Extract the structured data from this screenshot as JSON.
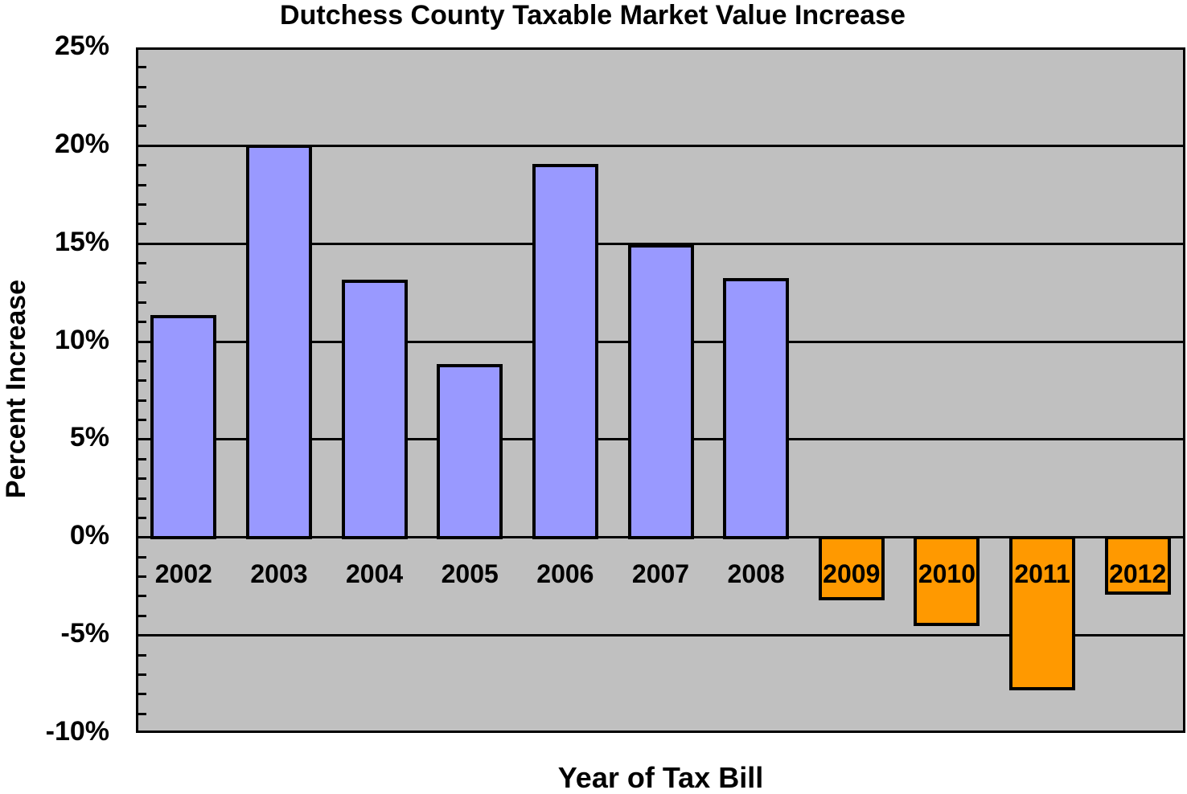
{
  "chart_data": {
    "type": "bar",
    "title": "Dutchess County Taxable Market Value Increase",
    "xlabel": "Year of Tax Bill",
    "ylabel": "Percent Increase",
    "categories": [
      "2002",
      "2003",
      "2004",
      "2005",
      "2006",
      "2007",
      "2008",
      "2009",
      "2010",
      "2011",
      "2012"
    ],
    "values": [
      11.3,
      20.0,
      13.1,
      8.8,
      19.0,
      14.9,
      13.2,
      -3.1,
      -4.4,
      -7.7,
      -2.8
    ],
    "ylim": [
      -10,
      25
    ],
    "yticks": [
      "25%",
      "20%",
      "15%",
      "10%",
      "5%",
      "0%",
      "-5%",
      "-10%"
    ],
    "ytick_values": [
      25,
      20,
      15,
      10,
      5,
      0,
      -5,
      -10
    ],
    "grid": true,
    "legend": null,
    "colors": {
      "positive": "#9999ff",
      "negative": "#ff9900",
      "plot_background": "#c0c0c0"
    }
  }
}
